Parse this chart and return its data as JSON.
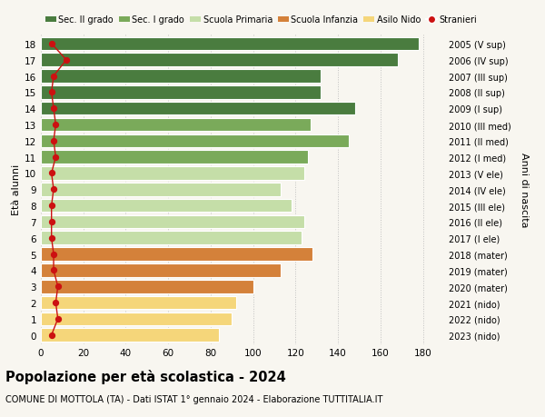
{
  "ages": [
    18,
    17,
    16,
    15,
    14,
    13,
    12,
    11,
    10,
    9,
    8,
    7,
    6,
    5,
    4,
    3,
    2,
    1,
    0
  ],
  "bar_values": [
    178,
    168,
    132,
    132,
    148,
    127,
    145,
    126,
    124,
    113,
    118,
    124,
    123,
    128,
    113,
    100,
    92,
    90,
    84
  ],
  "stranieri_values": [
    5,
    12,
    6,
    5,
    6,
    7,
    6,
    7,
    5,
    6,
    5,
    5,
    5,
    6,
    6,
    8,
    7,
    8,
    5
  ],
  "right_labels": [
    "2005 (V sup)",
    "2006 (IV sup)",
    "2007 (III sup)",
    "2008 (II sup)",
    "2009 (I sup)",
    "2010 (III med)",
    "2011 (II med)",
    "2012 (I med)",
    "2013 (V ele)",
    "2014 (IV ele)",
    "2015 (III ele)",
    "2016 (II ele)",
    "2017 (I ele)",
    "2018 (mater)",
    "2019 (mater)",
    "2020 (mater)",
    "2021 (nido)",
    "2022 (nido)",
    "2023 (nido)"
  ],
  "bar_colors": [
    "#4a7c3f",
    "#4a7c3f",
    "#4a7c3f",
    "#4a7c3f",
    "#4a7c3f",
    "#7aaa5a",
    "#7aaa5a",
    "#7aaa5a",
    "#c5dea8",
    "#c5dea8",
    "#c5dea8",
    "#c5dea8",
    "#c5dea8",
    "#d4813a",
    "#d4813a",
    "#d4813a",
    "#f5d67a",
    "#f5d67a",
    "#f5d67a"
  ],
  "legend_colors": [
    "#4a7c3f",
    "#7aaa5a",
    "#c5dea8",
    "#d4813a",
    "#f5d67a",
    "#cc1111"
  ],
  "legend_labels": [
    "Sec. II grado",
    "Sec. I grado",
    "Scuola Primaria",
    "Scuola Infanzia",
    "Asilo Nido",
    "Stranieri"
  ],
  "title": "Popolazione per età scolastica - 2024",
  "subtitle": "COMUNE DI MOTTOLA (TA) - Dati ISTAT 1° gennaio 2024 - Elaborazione TUTTITALIA.IT",
  "ylabel_left": "Età alunni",
  "ylabel_right": "Anni di nascita",
  "xlim": [
    0,
    190
  ],
  "xticks": [
    0,
    20,
    40,
    60,
    80,
    100,
    120,
    140,
    160,
    180
  ],
  "background_color": "#f8f6f0",
  "bar_height": 0.82,
  "stranieri_color": "#cc1111"
}
